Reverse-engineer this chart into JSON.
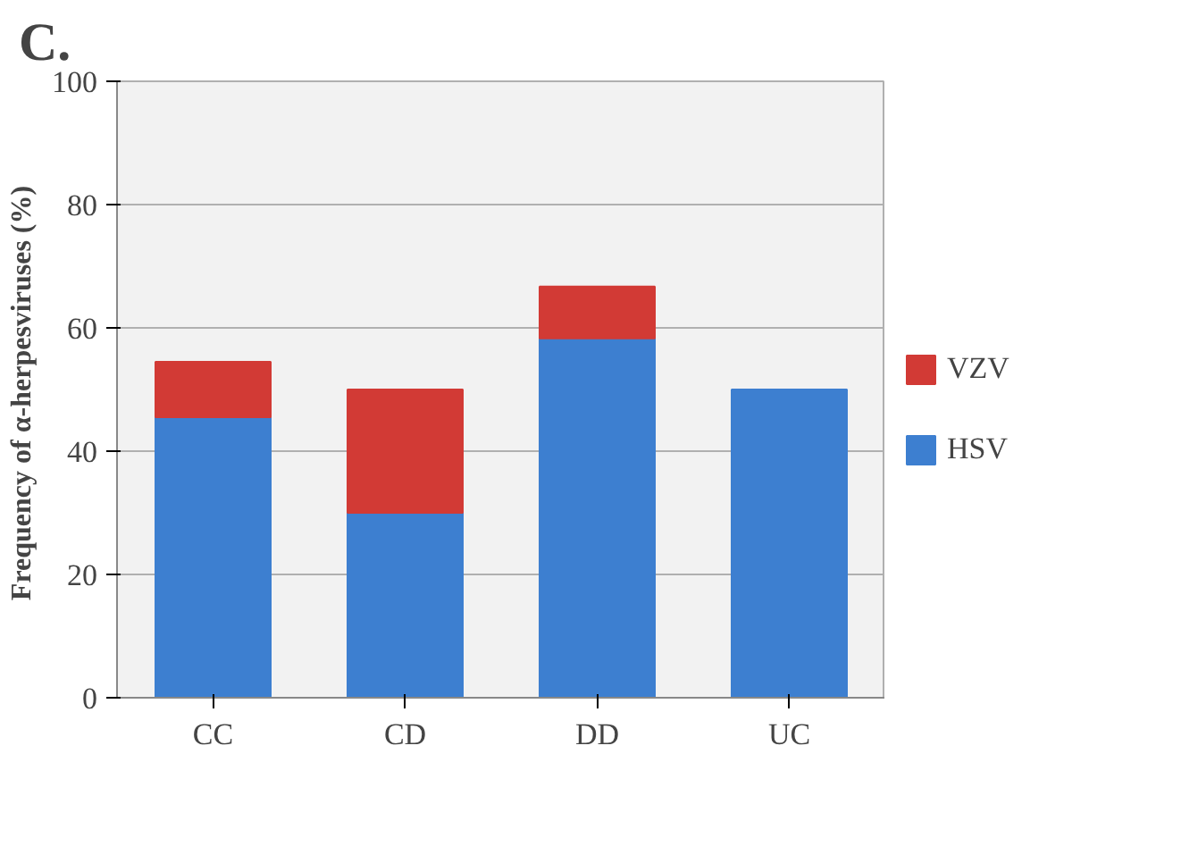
{
  "chart_data": {
    "type": "bar",
    "title": "C.",
    "ylabel": "Frequency of α-herpesviruses  (%)",
    "categories": [
      "CC",
      "CD",
      "DD",
      "UC"
    ],
    "stacked": true,
    "series": [
      {
        "name": "HSV",
        "color": "#3d7fd0",
        "values": [
          45.5,
          30,
          58.3,
          50
        ]
      },
      {
        "name": "VZV",
        "color": "#d23a35",
        "values": [
          9,
          20,
          8.4,
          null
        ]
      }
    ],
    "ylim": [
      0,
      100
    ],
    "yticks": [
      0,
      20,
      40,
      60,
      80,
      100
    ],
    "grid": "y",
    "legend": "right"
  }
}
